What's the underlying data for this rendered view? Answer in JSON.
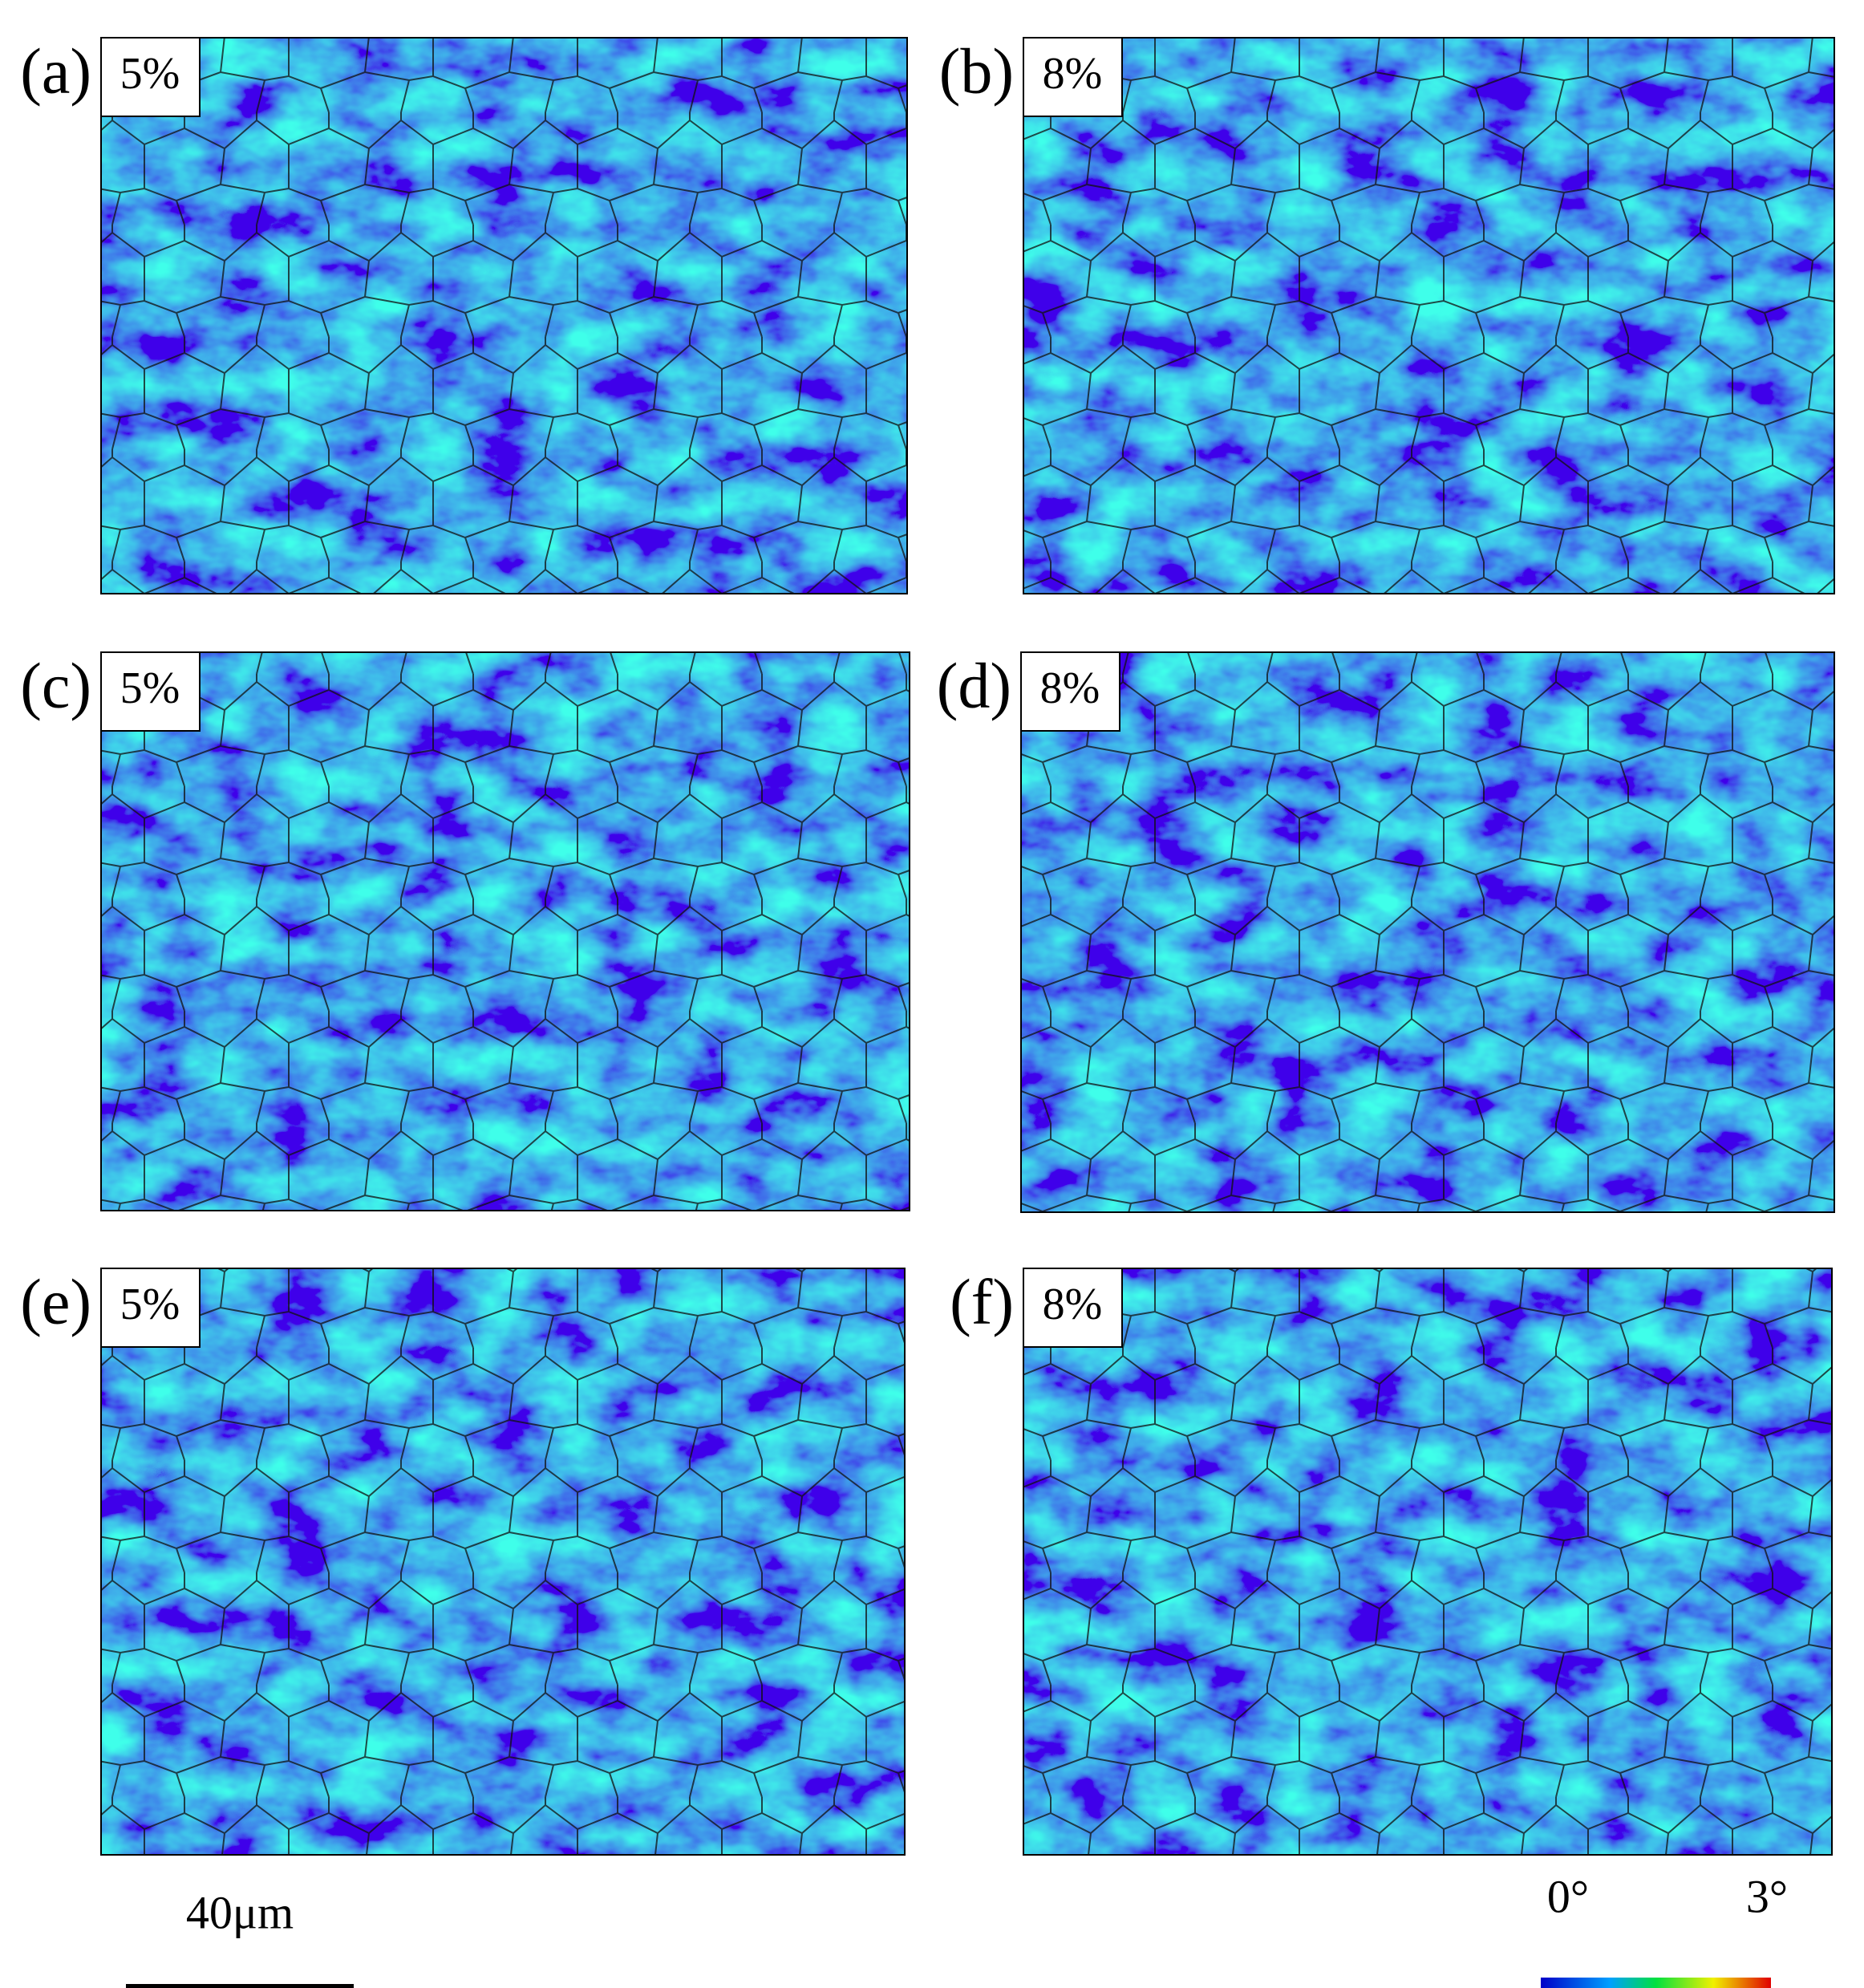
{
  "panels": [
    {
      "label": "(a)",
      "strain": "5%"
    },
    {
      "label": "(b)",
      "strain": "8%"
    },
    {
      "label": "(c)",
      "strain": "5%"
    },
    {
      "label": "(d)",
      "strain": "8%"
    },
    {
      "label": "(e)",
      "strain": "5%"
    },
    {
      "label": "(f)",
      "strain": "8%"
    }
  ],
  "scale_bar": {
    "label": "40μm"
  },
  "color_bar": {
    "min_label": "0°",
    "max_label": "3°"
  }
}
